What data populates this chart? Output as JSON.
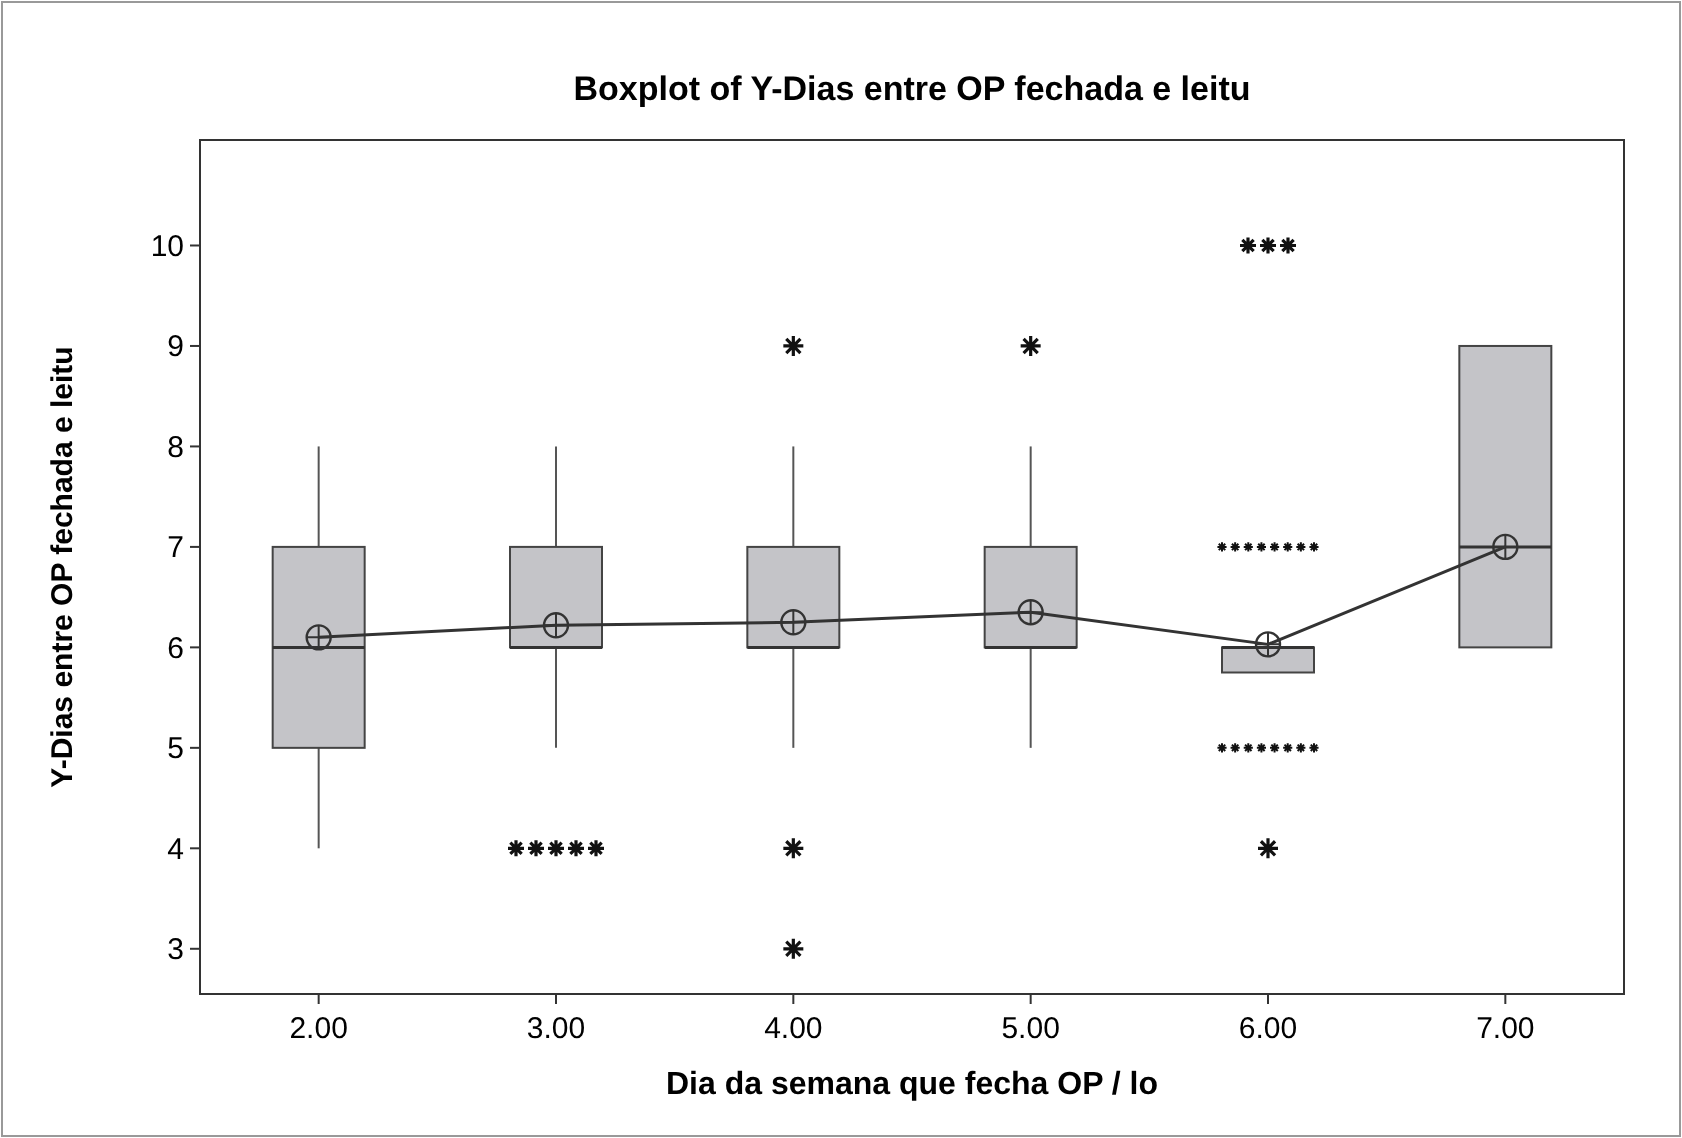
{
  "chart_data": {
    "type": "box",
    "title": "Boxplot of Y-Dias entre OP fechada e leitu",
    "xlabel": "Dia da semana que fecha OP / lo",
    "ylabel": "Y-Dias entre OP fechada e leitu",
    "categories": [
      "2.00",
      "3.00",
      "4.00",
      "5.00",
      "6.00",
      "7.00"
    ],
    "ylim": [
      2.55,
      11.05
    ],
    "yticks": [
      3,
      4,
      5,
      6,
      7,
      8,
      9,
      10
    ],
    "grid": false,
    "series": [
      {
        "color": "#c4c4c8",
        "boxes": [
          {
            "low": 4,
            "q1": 5,
            "median": 6,
            "q3": 7,
            "high": 8
          },
          {
            "low": 5,
            "q1": 6,
            "median": 6,
            "q3": 7,
            "high": 8,
            "outliers": [
              4,
              4,
              4,
              4,
              4
            ]
          },
          {
            "low": 5,
            "q1": 6,
            "median": 6,
            "q3": 7,
            "high": 8,
            "outliers": [
              9,
              4,
              3
            ]
          },
          {
            "low": 5,
            "q1": 6,
            "median": 6,
            "q3": 7,
            "high": 8,
            "outliers": [
              9
            ]
          },
          {
            "low": 5.75,
            "q1": 5.75,
            "median": 6,
            "q3": 6,
            "high": 6,
            "outliers": [
              10,
              10,
              10,
              7,
              7,
              7,
              7,
              7,
              7,
              7,
              7,
              5,
              5,
              5,
              5,
              5,
              5,
              5,
              5,
              4
            ]
          },
          {
            "low": 6,
            "q1": 6,
            "median": 7,
            "q3": 9,
            "high": 9
          }
        ]
      },
      {
        "type": "line",
        "color": "#333333",
        "marker": "circle",
        "values": [
          6.1,
          6.22,
          6.25,
          6.35,
          6.03,
          7
        ]
      }
    ]
  }
}
